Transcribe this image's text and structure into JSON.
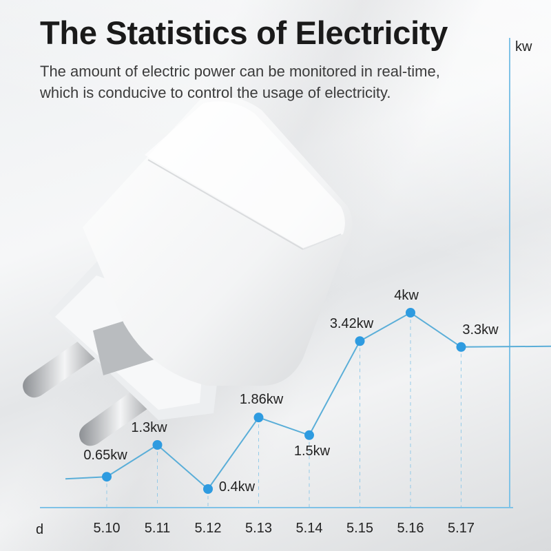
{
  "header": {
    "title": "The Statistics of Electricity",
    "subtitle_line1": "The amount of electric power can be monitored in real-time,",
    "subtitle_line2": "which is conducive to control the usage of electricity."
  },
  "colors": {
    "line": "#5aaed8",
    "point": "#2e9be0",
    "axis": "#7fc2e6",
    "text": "#222222",
    "title": "#1a1a1a"
  },
  "chart_data": {
    "type": "line",
    "xlabel": "d",
    "ylabel": "kw",
    "categories": [
      "5.10",
      "5.11",
      "5.12",
      "5.13",
      "5.14",
      "5.15",
      "5.16",
      "5.17"
    ],
    "values": [
      0.65,
      1.3,
      0.4,
      1.86,
      1.5,
      3.42,
      4,
      3.3
    ],
    "labels": [
      "0.65kw",
      "1.3kw",
      "0.4kw",
      "1.86kw",
      "1.5kw",
      "3.42kw",
      "4kw",
      "3.3kw"
    ],
    "grid": false,
    "legend": "none"
  }
}
